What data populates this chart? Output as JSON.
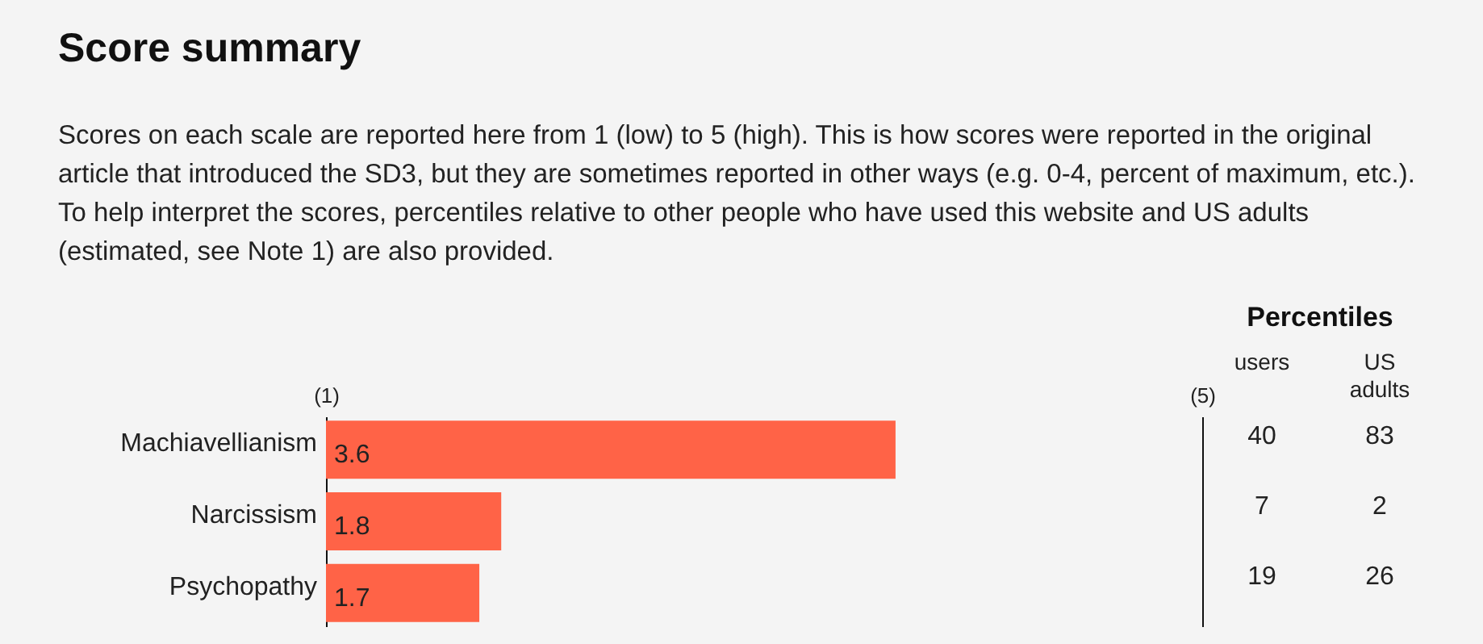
{
  "chart_data": {
    "type": "bar",
    "orientation": "horizontal",
    "title": "Score summary",
    "subtitle": "Scores on each scale are reported here from 1 (low) to 5 (high). This is how scores were reported in the original article that introduced the SD3, but they are sometimes reported in other ways (e.g. 0-4, percent of maximum, etc.). To help interpret the scores, percentiles relative to other people who have used this website and US adults (estimated, see Note 1) are also provided.",
    "categories": [
      "Machiavellianism",
      "Narcissism",
      "Psychopathy"
    ],
    "values": [
      3.6,
      1.8,
      1.7
    ],
    "color": "#ff6347",
    "data_labels": true,
    "xlim": [
      1,
      5
    ],
    "xticks": [
      {
        "value": 1,
        "label": "(1)"
      },
      {
        "value": 5,
        "label": "(5)"
      }
    ],
    "annotations": [
      "Percentiles",
      "users",
      "US adults",
      "40",
      "83",
      "7",
      "2",
      "19",
      "26"
    ]
  }
}
